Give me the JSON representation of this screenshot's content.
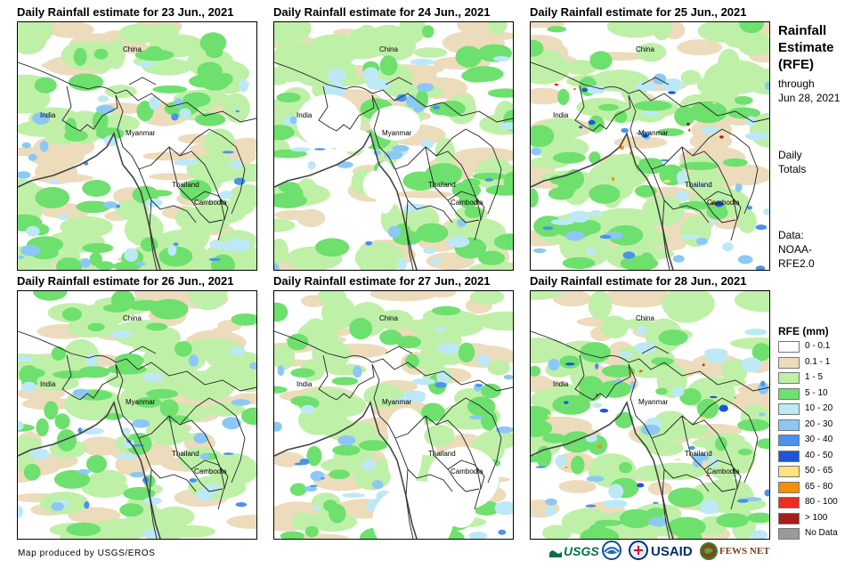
{
  "panels": [
    {
      "title": "Daily Rainfall estimate for 23 Jun., 2021",
      "variant": 0
    },
    {
      "title": "Daily Rainfall estimate for 24 Jun., 2021",
      "variant": 1
    },
    {
      "title": "Daily Rainfall estimate for 25 Jun., 2021",
      "variant": 2
    },
    {
      "title": "Daily Rainfall estimate for 26 Jun., 2021",
      "variant": 3
    },
    {
      "title": "Daily Rainfall estimate for 27 Jun., 2021",
      "variant": 4
    },
    {
      "title": "Daily Rainfall estimate for 28 Jun., 2021",
      "variant": 5
    }
  ],
  "country_labels": {
    "china": "China",
    "india": "India",
    "myanmar": "Myanmar",
    "thailand": "Thailand",
    "cambodia": "Cambodia"
  },
  "side_info": {
    "title_lines": [
      "Rainfall",
      "Estimate",
      "(RFE)"
    ],
    "through_line1": "through",
    "through_line2": "Jun 28, 2021",
    "daily_line1": "Daily",
    "daily_line2": "Totals",
    "data_line1": "Data:",
    "data_line2": "NOAA-",
    "data_line3": "RFE2.0"
  },
  "legend": {
    "title": "RFE (mm)",
    "items": [
      {
        "label": "0 - 0.1",
        "color": "#ffffff"
      },
      {
        "label": "0.1 - 1",
        "color": "#ecdcbc"
      },
      {
        "label": "1 - 5",
        "color": "#bff0a8"
      },
      {
        "label": "5 - 10",
        "color": "#6ee06e"
      },
      {
        "label": "10 - 20",
        "color": "#bde9f7"
      },
      {
        "label": "20 - 30",
        "color": "#8cc8f5"
      },
      {
        "label": "30 - 40",
        "color": "#4a92ee"
      },
      {
        "label": "40 - 50",
        "color": "#1f53d9"
      },
      {
        "label": "50 - 65",
        "color": "#fde47c"
      },
      {
        "label": "65 - 80",
        "color": "#f88e06"
      },
      {
        "label": "80 - 100",
        "color": "#ef2c1d"
      },
      {
        "label": "> 100",
        "color": "#a61d1d"
      },
      {
        "label": "No Data",
        "color": "#9a9a9a"
      }
    ]
  },
  "credit": "Map produced by USGS/EROS",
  "logos": {
    "usgs": "USGS",
    "usaid": "USAID",
    "fewsnet": "FEWS NET"
  }
}
